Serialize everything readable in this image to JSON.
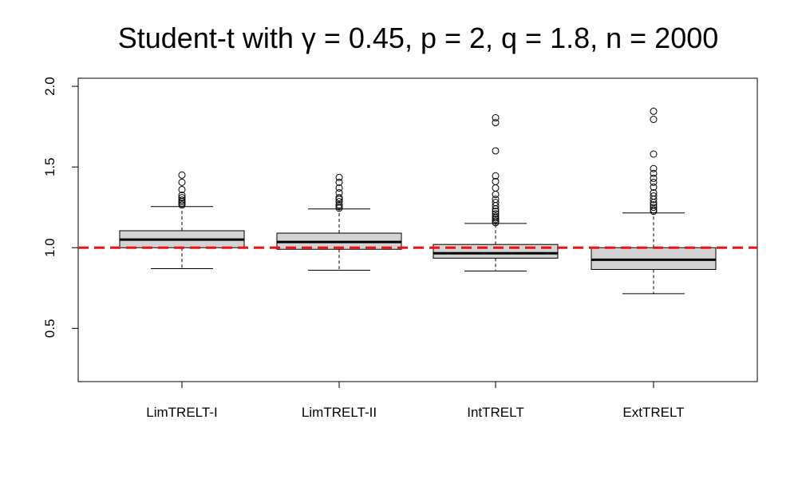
{
  "chart_data": {
    "type": "boxplot",
    "title": "Student-t with γ = 0.45, p = 2, q = 1.8, n = 2000",
    "xlabel": "",
    "ylabel": "",
    "ylim": [
      0.17,
      2.05
    ],
    "y_ticks": [
      0.5,
      1.0,
      1.5,
      2.0
    ],
    "y_tick_labels": [
      "0.5",
      "1.0",
      "1.5",
      "2.0"
    ],
    "categories": [
      "LimTRELT-I",
      "LimTRELT-II",
      "IntTRELT",
      "ExtTRELT"
    ],
    "reference_line": {
      "y": 1.0,
      "color": "#ee1111",
      "style": "dashed"
    },
    "box_fill": "#d3d3d3",
    "grid": false,
    "boxes": [
      {
        "name": "LimTRELT-I",
        "whisker_low": 0.87,
        "q1": 1.0,
        "median": 1.05,
        "q3": 1.105,
        "whisker_high": 1.255,
        "outliers": [
          1.265,
          1.275,
          1.285,
          1.295,
          1.31,
          1.325,
          1.36,
          1.405,
          1.45
        ]
      },
      {
        "name": "LimTRELT-II",
        "whisker_low": 0.86,
        "q1": 0.99,
        "median": 1.035,
        "q3": 1.09,
        "whisker_high": 1.24,
        "outliers": [
          1.245,
          1.255,
          1.265,
          1.285,
          1.3,
          1.31,
          1.34,
          1.37,
          1.405,
          1.435
        ]
      },
      {
        "name": "IntTRELT",
        "whisker_low": 0.855,
        "q1": 0.935,
        "median": 0.965,
        "q3": 1.02,
        "whisker_high": 1.15,
        "outliers": [
          1.155,
          1.165,
          1.175,
          1.185,
          1.195,
          1.21,
          1.225,
          1.24,
          1.26,
          1.28,
          1.3,
          1.33,
          1.37,
          1.41,
          1.445,
          1.6,
          1.775,
          1.805
        ]
      },
      {
        "name": "ExtTRELT",
        "whisker_low": 0.715,
        "q1": 0.865,
        "median": 0.925,
        "q3": 1.0,
        "whisker_high": 1.215,
        "outliers": [
          1.225,
          1.235,
          1.25,
          1.265,
          1.28,
          1.3,
          1.32,
          1.34,
          1.375,
          1.405,
          1.43,
          1.46,
          1.49,
          1.58,
          1.795,
          1.845
        ]
      }
    ]
  }
}
